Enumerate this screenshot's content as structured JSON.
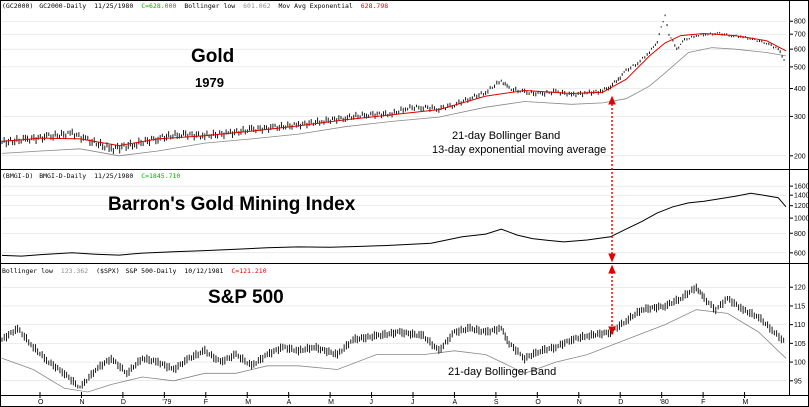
{
  "colors": {
    "price": "#000000",
    "moving_average": "#e00000",
    "bollinger": "#888888",
    "green": "#00b000",
    "grey_text": "#909090",
    "arrow": "#e00000",
    "grid": "#d8d8d8"
  },
  "chart_data": [
    {
      "type": "line",
      "panel": "gold",
      "header": {
        "symbol": "(GC2000)",
        "series": "GC2000-Daily",
        "date": "11/25/1980",
        "close": "C=628.000",
        "boll_label": "Bollinger low",
        "boll_value": "601.062",
        "ma_label": "Mov Avg Exponential",
        "ma_value": "628.798"
      },
      "title": "Gold",
      "subtitle": "1979",
      "annotations": [
        "21-day Bollinger Band",
        "13-day exponential moving average"
      ],
      "log_scale": true,
      "y_ticks": [
        "800",
        "700",
        "600",
        "500",
        "400",
        "300",
        "200"
      ],
      "ylim": [
        180,
        880
      ],
      "points": [
        [
          0,
          230
        ],
        [
          6,
          236
        ],
        [
          12,
          244
        ],
        [
          18,
          252
        ],
        [
          22,
          235
        ],
        [
          28,
          215
        ],
        [
          34,
          225
        ],
        [
          40,
          240
        ],
        [
          46,
          250
        ],
        [
          52,
          246
        ],
        [
          58,
          252
        ],
        [
          64,
          262
        ],
        [
          70,
          268
        ],
        [
          76,
          275
        ],
        [
          82,
          285
        ],
        [
          88,
          296
        ],
        [
          94,
          306
        ],
        [
          100,
          308
        ],
        [
          104,
          328
        ],
        [
          108,
          330
        ],
        [
          112,
          325
        ],
        [
          116,
          338
        ],
        [
          120,
          362
        ],
        [
          124,
          384
        ],
        [
          128,
          434
        ],
        [
          130,
          400
        ],
        [
          134,
          385
        ],
        [
          138,
          378
        ],
        [
          142,
          388
        ],
        [
          146,
          375
        ],
        [
          150,
          382
        ],
        [
          154,
          390
        ],
        [
          156,
          410
        ],
        [
          158,
          440
        ],
        [
          160,
          480
        ],
        [
          163,
          520
        ],
        [
          166,
          580
        ],
        [
          168,
          650
        ],
        [
          170,
          850
        ],
        [
          171,
          700
        ],
        [
          173,
          600
        ],
        [
          175,
          660
        ],
        [
          178,
          690
        ],
        [
          181,
          700
        ],
        [
          184,
          705
        ],
        [
          187,
          690
        ],
        [
          190,
          680
        ],
        [
          193,
          660
        ],
        [
          196,
          640
        ],
        [
          199,
          600
        ],
        [
          201,
          520
        ]
      ],
      "ma": [
        [
          0,
          232
        ],
        [
          10,
          240
        ],
        [
          20,
          238
        ],
        [
          30,
          222
        ],
        [
          40,
          238
        ],
        [
          52,
          246
        ],
        [
          64,
          258
        ],
        [
          76,
          272
        ],
        [
          88,
          290
        ],
        [
          100,
          305
        ],
        [
          112,
          322
        ],
        [
          124,
          370
        ],
        [
          134,
          392
        ],
        [
          146,
          380
        ],
        [
          154,
          385
        ],
        [
          160,
          440
        ],
        [
          166,
          560
        ],
        [
          170,
          640
        ],
        [
          174,
          690
        ],
        [
          180,
          705
        ],
        [
          188,
          690
        ],
        [
          196,
          655
        ],
        [
          201,
          590
        ]
      ],
      "boll_low": [
        [
          0,
          205
        ],
        [
          10,
          210
        ],
        [
          20,
          215
        ],
        [
          30,
          200
        ],
        [
          40,
          210
        ],
        [
          52,
          228
        ],
        [
          64,
          238
        ],
        [
          76,
          250
        ],
        [
          88,
          270
        ],
        [
          100,
          285
        ],
        [
          112,
          298
        ],
        [
          124,
          330
        ],
        [
          134,
          350
        ],
        [
          146,
          340
        ],
        [
          154,
          345
        ],
        [
          160,
          360
        ],
        [
          166,
          410
        ],
        [
          170,
          470
        ],
        [
          176,
          580
        ],
        [
          182,
          610
        ],
        [
          188,
          600
        ],
        [
          196,
          580
        ],
        [
          201,
          560
        ]
      ]
    },
    {
      "type": "line",
      "panel": "mining",
      "header": {
        "symbol": "(BMGI-D)",
        "series": "BMGI-D-Daily",
        "date": "11/25/1980",
        "close": "C=1845.710"
      },
      "title": "Barron's Gold Mining Index",
      "log_scale": true,
      "y_ticks": [
        "1600",
        "1400",
        "1200",
        "1000",
        "800",
        "600"
      ],
      "ylim": [
        540,
        1700
      ],
      "points": [
        [
          0,
          578
        ],
        [
          5,
          572
        ],
        [
          10,
          585
        ],
        [
          18,
          600
        ],
        [
          24,
          588
        ],
        [
          30,
          580
        ],
        [
          36,
          598
        ],
        [
          44,
          610
        ],
        [
          52,
          620
        ],
        [
          60,
          632
        ],
        [
          68,
          646
        ],
        [
          76,
          655
        ],
        [
          84,
          652
        ],
        [
          92,
          660
        ],
        [
          100,
          670
        ],
        [
          110,
          690
        ],
        [
          118,
          760
        ],
        [
          124,
          790
        ],
        [
          128,
          850
        ],
        [
          132,
          780
        ],
        [
          136,
          740
        ],
        [
          140,
          720
        ],
        [
          144,
          705
        ],
        [
          150,
          725
        ],
        [
          156,
          760
        ],
        [
          160,
          850
        ],
        [
          164,
          950
        ],
        [
          168,
          1080
        ],
        [
          172,
          1180
        ],
        [
          176,
          1250
        ],
        [
          180,
          1280
        ],
        [
          184,
          1330
        ],
        [
          188,
          1380
        ],
        [
          192,
          1440
        ],
        [
          196,
          1390
        ],
        [
          199,
          1350
        ],
        [
          201,
          1180
        ]
      ]
    },
    {
      "type": "line",
      "panel": "sp500",
      "header": {
        "boll_label": "Bollinger low",
        "boll_value": "123.362",
        "symbol": "($SPX)",
        "series": "S&P 500-Daily",
        "date": "10/12/1981",
        "close": "C=121.210"
      },
      "title": "S&P 500",
      "annotations": [
        "21-day Bollinger Band"
      ],
      "y_ticks": [
        "120",
        "115",
        "110",
        "105",
        "100",
        "95"
      ],
      "ylim": [
        92,
        123
      ],
      "x_ticks": [
        "O",
        "N",
        "D",
        "'79",
        "F",
        "M",
        "A",
        "M",
        "J",
        "J",
        "A",
        "S",
        "O",
        "N",
        "D",
        "'80",
        "F",
        "M"
      ],
      "points": [
        [
          0,
          106
        ],
        [
          4,
          109
        ],
        [
          8,
          104
        ],
        [
          12,
          100
        ],
        [
          16,
          97
        ],
        [
          20,
          93
        ],
        [
          24,
          98
        ],
        [
          28,
          101
        ],
        [
          32,
          97
        ],
        [
          36,
          101
        ],
        [
          40,
          100
        ],
        [
          44,
          98
        ],
        [
          48,
          101
        ],
        [
          52,
          103
        ],
        [
          56,
          100
        ],
        [
          60,
          102
        ],
        [
          64,
          99
        ],
        [
          68,
          102
        ],
        [
          72,
          104
        ],
        [
          76,
          103
        ],
        [
          80,
          104
        ],
        [
          86,
          102
        ],
        [
          90,
          106
        ],
        [
          96,
          107
        ],
        [
          102,
          108
        ],
        [
          108,
          107
        ],
        [
          112,
          103
        ],
        [
          116,
          108
        ],
        [
          120,
          109
        ],
        [
          124,
          108
        ],
        [
          128,
          109
        ],
        [
          130,
          105
        ],
        [
          134,
          101
        ],
        [
          138,
          103
        ],
        [
          142,
          104
        ],
        [
          146,
          106
        ],
        [
          150,
          107
        ],
        [
          156,
          108
        ],
        [
          160,
          111
        ],
        [
          164,
          114
        ],
        [
          170,
          115
        ],
        [
          174,
          117
        ],
        [
          178,
          120
        ],
        [
          180,
          117
        ],
        [
          183,
          114
        ],
        [
          186,
          117
        ],
        [
          190,
          114
        ],
        [
          194,
          112
        ],
        [
          198,
          108
        ],
        [
          201,
          105
        ]
      ],
      "boll_low": [
        [
          0,
          101
        ],
        [
          8,
          98
        ],
        [
          16,
          93
        ],
        [
          22,
          92
        ],
        [
          28,
          94
        ],
        [
          36,
          96
        ],
        [
          44,
          95
        ],
        [
          52,
          97
        ],
        [
          60,
          97
        ],
        [
          68,
          99
        ],
        [
          76,
          99
        ],
        [
          86,
          98
        ],
        [
          96,
          102
        ],
        [
          108,
          102
        ],
        [
          116,
          103
        ],
        [
          124,
          102
        ],
        [
          130,
          99
        ],
        [
          134,
          97
        ],
        [
          142,
          100
        ],
        [
          150,
          102
        ],
        [
          160,
          106
        ],
        [
          170,
          110
        ],
        [
          178,
          114
        ],
        [
          186,
          113
        ],
        [
          194,
          108
        ],
        [
          201,
          101
        ]
      ]
    }
  ]
}
